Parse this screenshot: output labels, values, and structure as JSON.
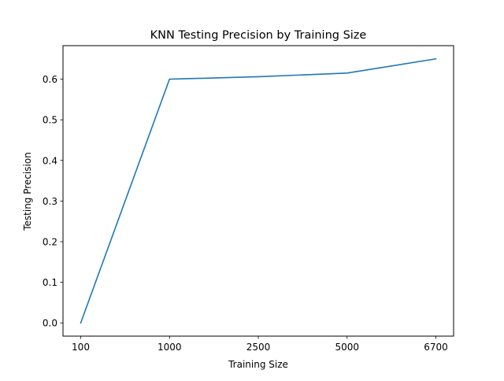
{
  "chart_data": {
    "type": "line",
    "title": "KNN Testing Precision by Training Size",
    "xlabel": "Training Size",
    "ylabel": "Testing Precision",
    "categories": [
      "100",
      "1000",
      "2500",
      "5000",
      "6700"
    ],
    "series": [
      {
        "values": [
          0.0,
          0.6,
          0.606,
          0.615,
          0.65
        ],
        "color": "#1f77b4"
      }
    ],
    "ylim": [
      -0.0325,
      0.6825
    ],
    "yticks": [
      0.0,
      0.1,
      0.2,
      0.3,
      0.4,
      0.5,
      0.6
    ],
    "ytick_labels": [
      "0.0",
      "0.1",
      "0.2",
      "0.3",
      "0.4",
      "0.5",
      "0.6"
    ],
    "grid": false,
    "legend": "none"
  }
}
